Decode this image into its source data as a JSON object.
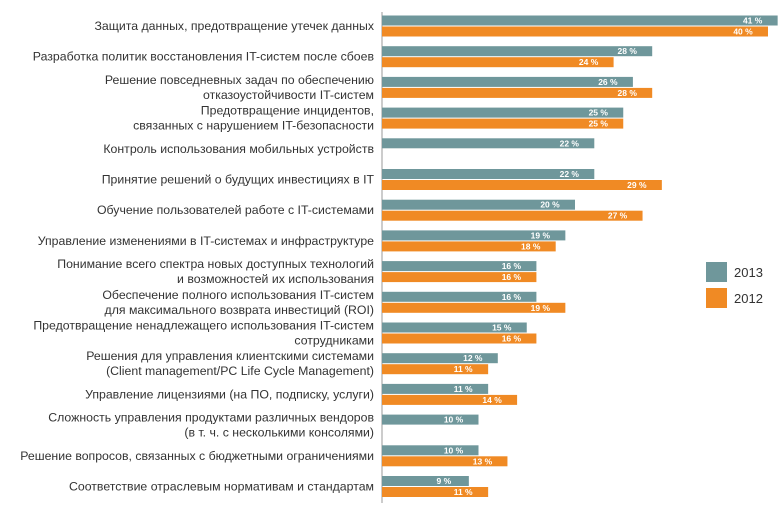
{
  "chart_data": {
    "type": "bar",
    "orientation": "horizontal",
    "title": "",
    "xlabel": "",
    "ylabel": "",
    "xlim": [
      0,
      42
    ],
    "value_suffix": " %",
    "legend_position": "right",
    "categories": [
      "Защита данных, предотвращение утечек данных",
      "Разработка политик восстановления IT-систем после сбоев",
      "Решение повседневных задач по обеспечению\nотказоустойчивости IT-систем",
      "Предотвращение инцидентов,\nсвязанных с нарушением IT-безопасности",
      "Контроль использования мобильных устройств",
      "Принятие решений о будущих инвестициях в IT",
      "Обучение пользователей работе с IT-системами",
      "Управление изменениями в IT-системах и инфраструктуре",
      "Понимание всего спектра новых доступных технологий\nи возможностей их использования",
      "Обеспечение полного использования IT-систем\nдля максимального возврата инвестиций (ROI)",
      "Предотвращение ненадлежащего использования IT-систем\nсотрудниками",
      "Решения для управления клиентскими системами\n(Client management/PC Life Cycle Management)",
      "Управление лицензиями (на ПО, подписку, услуги)",
      "Сложность управления продуктами различных вендоров\n(в т. ч. с несколькими консолями)",
      "Решение вопросов, связанных с бюджетными ограничениями",
      "Соответствие отраслевым нормативам и стандартам"
    ],
    "series": [
      {
        "name": "2013",
        "color": "#6f979b",
        "values": [
          41,
          28,
          26,
          25,
          22,
          22,
          20,
          19,
          16,
          16,
          15,
          12,
          11,
          10,
          10,
          9
        ]
      },
      {
        "name": "2012",
        "color": "#f08a24",
        "values": [
          40,
          24,
          28,
          25,
          null,
          29,
          27,
          18,
          16,
          19,
          16,
          11,
          14,
          null,
          13,
          11
        ]
      }
    ]
  }
}
